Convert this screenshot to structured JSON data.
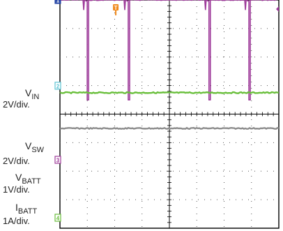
{
  "chart_data": {
    "type": "line",
    "title": "",
    "xlabel": "",
    "ylabel": "",
    "grid": true,
    "divisions": {
      "x": 8,
      "y": 8
    },
    "trigger_marker": "T",
    "series": [
      {
        "name": "",
        "color": "#2b4aa8",
        "level_div": 7.25,
        "shape": "flat"
      },
      {
        "name": "",
        "color": "#5cc3d3",
        "level_div": 5.25,
        "shape": "flat"
      },
      {
        "name": "V_IN",
        "color": "#9e3b9a",
        "level_div": 4.0,
        "shape": "pulse",
        "low_div": 0.5,
        "pulse_positions_div": [
          0.92,
          2.42,
          5.37,
          6.83
        ]
      },
      {
        "name": "V_BATT",
        "color": "#6abf3c",
        "level_div": 0.75,
        "shape": "flat"
      },
      {
        "name": "I_BATT",
        "color": "#8c8c8c",
        "level_div": -0.5,
        "shape": "flat"
      }
    ],
    "channel_labels": [
      {
        "main": "V",
        "sub": "IN",
        "scale": "2V/div.",
        "marker": "1"
      },
      {
        "main": "V",
        "sub": "SW",
        "scale": "2V/div.",
        "marker": "3"
      },
      {
        "main": "V",
        "sub": "BATT",
        "scale": "1V/div.",
        "marker": "2"
      },
      {
        "main": "I",
        "sub": "BATT",
        "scale": "1A/div.",
        "marker": "4"
      }
    ]
  }
}
